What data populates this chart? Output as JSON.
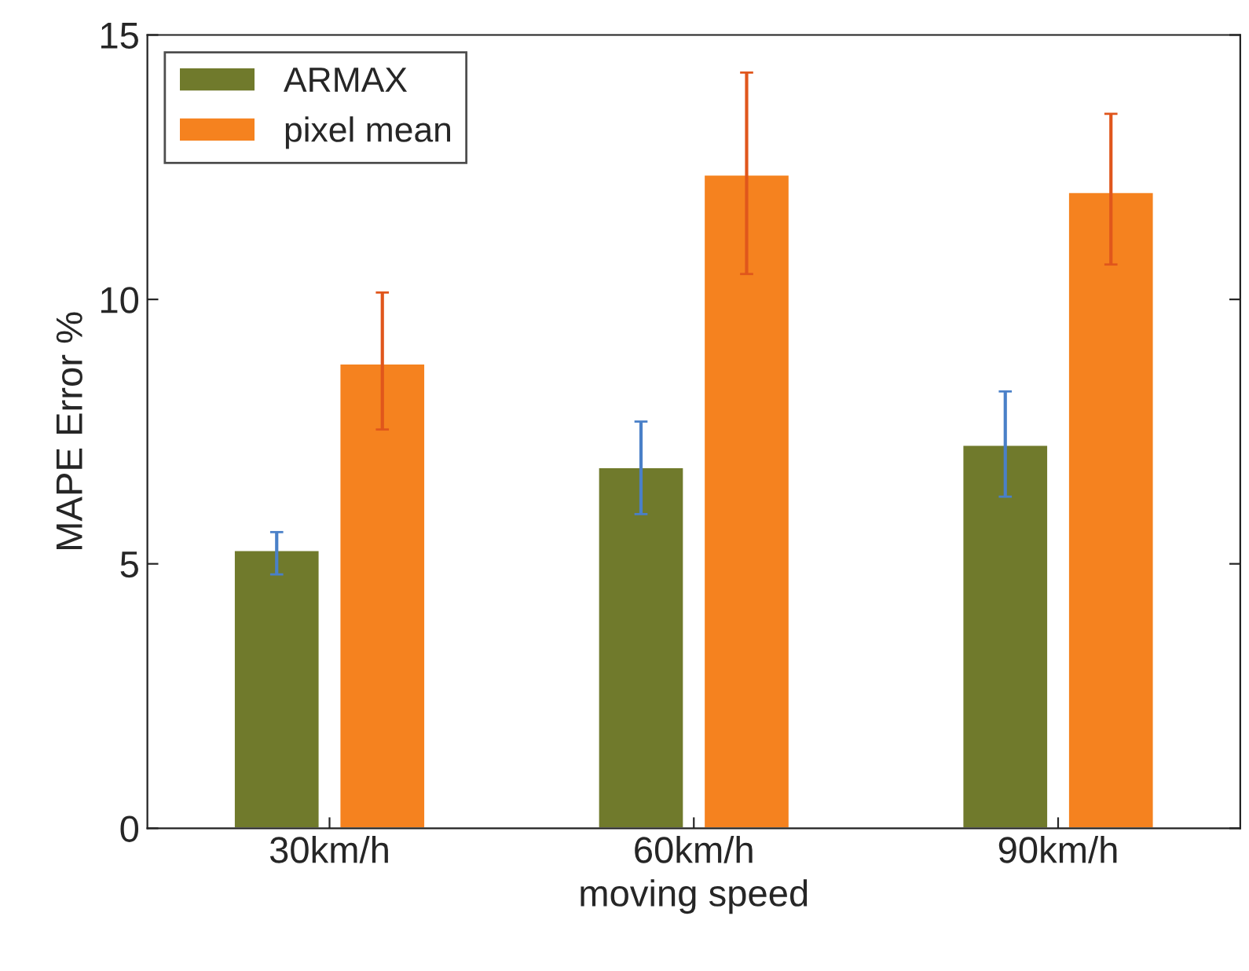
{
  "chart_data": {
    "type": "bar",
    "xlabel": "moving speed",
    "ylabel": "MAPE Error %",
    "categories": [
      "30km/h",
      "60km/h",
      "90km/h"
    ],
    "series": [
      {
        "name": "ARMAX",
        "color": "#707a2c",
        "values": [
          5.26,
          6.83,
          7.25
        ],
        "errors": [
          [
            4.8,
            5.6
          ],
          [
            5.94,
            7.69
          ],
          [
            6.27,
            8.26
          ]
        ]
      },
      {
        "name": "pixel mean",
        "color": "#f5821f",
        "values": [
          8.79,
          12.36,
          12.03
        ],
        "errors": [
          [
            7.54,
            10.13
          ],
          [
            10.48,
            14.29
          ],
          [
            10.66,
            13.51
          ]
        ]
      }
    ],
    "ylim": [
      0,
      15
    ],
    "yticks": [
      0,
      5,
      10,
      15
    ],
    "grid": false,
    "legend": "top left"
  }
}
